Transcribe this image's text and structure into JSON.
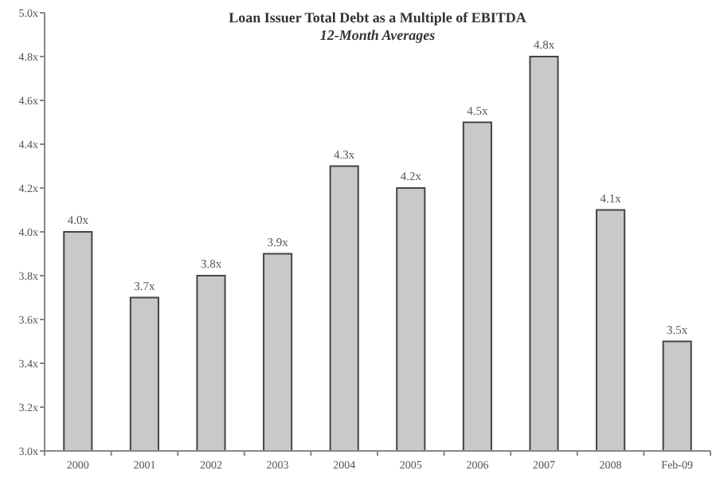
{
  "chart_data": {
    "type": "bar",
    "title": "Loan Issuer Total Debt as a Multiple of EBITDA",
    "subtitle": "12-Month Averages",
    "categories": [
      "2000",
      "2001",
      "2002",
      "2003",
      "2004",
      "2005",
      "2006",
      "2007",
      "2008",
      "Feb-09"
    ],
    "values": [
      4.0,
      3.7,
      3.8,
      3.9,
      4.3,
      4.2,
      4.5,
      4.8,
      4.1,
      3.5
    ],
    "value_labels": [
      "4.0x",
      "3.7x",
      "3.8x",
      "3.9x",
      "4.3x",
      "4.2x",
      "4.5x",
      "4.8x",
      "4.1x",
      "3.5x"
    ],
    "color": "#c8c9cb",
    "ylim": [
      3.0,
      5.0
    ],
    "yticks": [
      {
        "value": 3.0,
        "label": "3.0x"
      },
      {
        "value": 3.2,
        "label": "3.2x"
      },
      {
        "value": 3.4,
        "label": "3.4x"
      },
      {
        "value": 3.6,
        "label": "3.6x"
      },
      {
        "value": 3.8,
        "label": "3.8x"
      },
      {
        "value": 4.0,
        "label": "4.0x"
      },
      {
        "value": 4.2,
        "label": "4.2x"
      },
      {
        "value": 4.4,
        "label": "4.4x"
      },
      {
        "value": 4.6,
        "label": "4.6x"
      },
      {
        "value": 4.8,
        "label": "4.8x"
      },
      {
        "value": 5.0,
        "label": "5.0x"
      }
    ],
    "grid": false
  }
}
